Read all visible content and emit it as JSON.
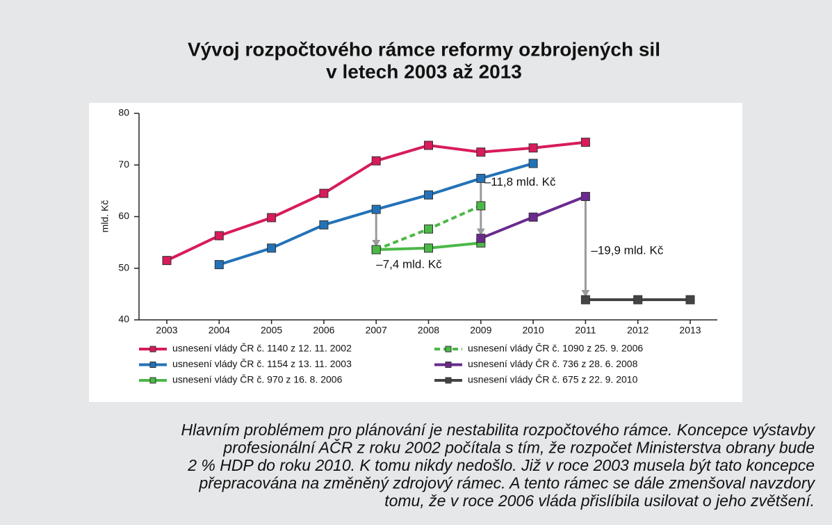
{
  "chart_data": {
    "type": "line",
    "title": [
      "Vývoj rozpočtového rámce reformy ozbrojených sil",
      "v letech 2003 až 2013"
    ],
    "y_label": "mld. Kč",
    "categories": [
      "2003",
      "2004",
      "2005",
      "2006",
      "2007",
      "2008",
      "2009",
      "2010",
      "2011",
      "2012",
      "2013"
    ],
    "ylim": [
      40,
      80
    ],
    "yticks": [
      40,
      50,
      60,
      70,
      80
    ],
    "series": [
      {
        "name": "usnesení vlády ČR č. 1140 z 12. 11. 2002",
        "color": "#d81b5a",
        "dashed": false,
        "values": [
          51.5,
          56.3,
          59.8,
          64.5,
          70.8,
          73.8,
          72.5,
          73.3,
          74.4,
          null,
          null
        ]
      },
      {
        "name": "usnesení vlády ČR č. 1154 z 13. 11. 2003",
        "color": "#2372b8",
        "dashed": false,
        "values": [
          null,
          50.7,
          53.9,
          58.4,
          61.4,
          64.2,
          67.4,
          70.3,
          null,
          null,
          null
        ]
      },
      {
        "name": "usnesení vlády ČR č. 970 z 16. 8. 2006",
        "color": "#4cb847",
        "dashed": false,
        "values": [
          null,
          null,
          null,
          null,
          53.6,
          53.9,
          54.9,
          null,
          null,
          null,
          null
        ]
      },
      {
        "name": "usnesení vlády ČR č. 1090 z 25. 9. 2006",
        "color": "#4cb847",
        "dashed": true,
        "values": [
          null,
          null,
          null,
          null,
          53.6,
          57.6,
          62.1,
          null,
          null,
          null,
          null
        ]
      },
      {
        "name": "usnesení vlády ČR č. 736 z 28. 6. 2008",
        "color": "#6a2a8e",
        "dashed": false,
        "values": [
          null,
          null,
          null,
          null,
          null,
          null,
          55.8,
          59.9,
          63.9,
          null,
          null
        ]
      },
      {
        "name": "usnesení vlády ČR č. 675 z 22. 9. 2010",
        "color": "#444444",
        "dashed": false,
        "values": [
          null,
          null,
          null,
          null,
          null,
          null,
          null,
          null,
          43.9,
          43.9,
          43.9
        ]
      }
    ],
    "annotations": [
      "–11,8 mld. Kč",
      "–7,4 mld. Kč",
      "–19,9 mld. Kč"
    ]
  },
  "caption_lines": [
    "Hlavním problémem pro plánování je nestabilita rozpočtového rámce. Koncepce výstavby",
    "profesionální AČR z roku 2002 počítala s tím, že rozpočet Ministerstva obrany bude",
    "2 % HDP do roku 2010. K tomu nikdy nedošlo. Již v roce 2003 musela být tato koncepce",
    "přepracována na změněný zdrojový rámec. A tento rámec se dále zmenšoval navzdory",
    "tomu, že v roce 2006 vláda přislíbila usilovat o jeho zvětšení."
  ]
}
